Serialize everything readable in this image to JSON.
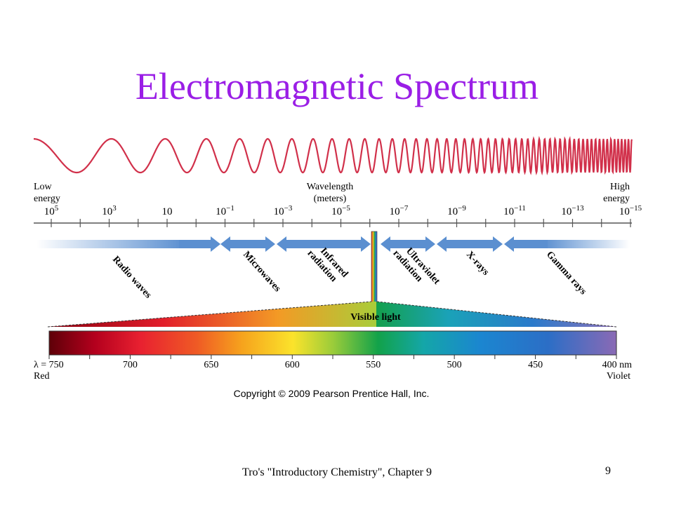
{
  "slide": {
    "title": "Electromagnetic Spectrum",
    "footer": "Tro's \"Introductory Chemistry\", Chapter 9",
    "page_number": "9"
  },
  "diagram": {
    "low_energy": [
      "Low",
      "energy"
    ],
    "high_energy": [
      "High",
      "energy"
    ],
    "axis_label": [
      "Wavelength",
      "(meters)"
    ],
    "wavelength_ticks": [
      {
        "base": "10",
        "exp": "5"
      },
      {
        "base": "10",
        "exp": "3"
      },
      {
        "base": "10",
        "exp": ""
      },
      {
        "base": "10",
        "exp": "−1"
      },
      {
        "base": "10",
        "exp": "−3"
      },
      {
        "base": "10",
        "exp": "−5"
      },
      {
        "base": "10",
        "exp": "−7"
      },
      {
        "base": "10",
        "exp": "−9"
      },
      {
        "base": "10",
        "exp": "−11"
      },
      {
        "base": "10",
        "exp": "−13"
      },
      {
        "base": "10",
        "exp": "−15"
      }
    ],
    "regions": [
      {
        "lines": [
          "Radio waves"
        ]
      },
      {
        "lines": [
          "Microwaves"
        ]
      },
      {
        "lines": [
          "Infrared",
          "radiation"
        ]
      },
      {
        "lines": [
          "Ultraviolet",
          "radiation"
        ]
      },
      {
        "lines": [
          "X-rays"
        ]
      },
      {
        "lines": [
          "Gamma rays"
        ]
      }
    ],
    "visible_label": "Visible light",
    "nm_ticks": [
      "λ = 750",
      "700",
      "650",
      "600",
      "550",
      "500",
      "450",
      "400 nm"
    ],
    "red_label": "Red",
    "violet_label": "Violet",
    "copyright": "Copyright © 2009 Pearson Prentice Hall, Inc.",
    "colors": {
      "title": "#9a1ee6",
      "wave": "#d1304a",
      "arrow": "#5b8fd0"
    }
  }
}
